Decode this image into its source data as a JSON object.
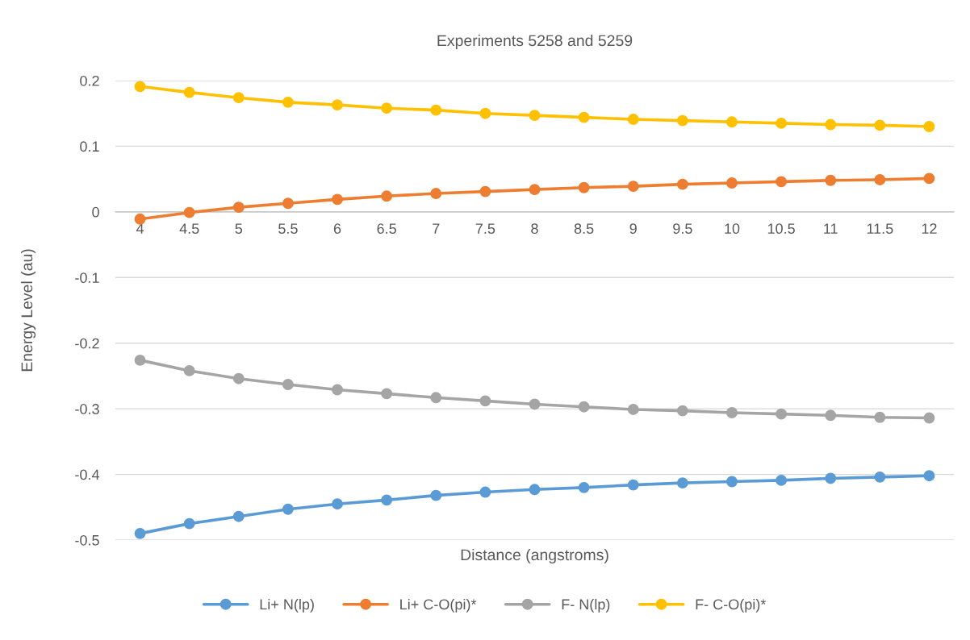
{
  "chart_data": {
    "type": "line",
    "title": "Experiments 5258 and 5259",
    "xlabel": "Distance (angstroms)",
    "ylabel": "Energy Level (au)",
    "categories": [
      "4",
      "4.5",
      "5",
      "5.5",
      "6",
      "6.5",
      "7",
      "7.5",
      "8",
      "8.5",
      "9",
      "9.5",
      "10",
      "10.5",
      "11",
      "11.5",
      "12"
    ],
    "series": [
      {
        "name": "Li+ N(lp)",
        "color": "#5b9bd5",
        "values": [
          -0.49,
          -0.475,
          -0.464,
          -0.453,
          -0.445,
          -0.439,
          -0.432,
          -0.427,
          -0.423,
          -0.42,
          -0.416,
          -0.413,
          -0.411,
          -0.409,
          -0.406,
          -0.404,
          -0.402
        ]
      },
      {
        "name": "Li+ C-O(pi)*",
        "color": "#ed7d31",
        "values": [
          -0.011,
          -0.001,
          0.007,
          0.013,
          0.019,
          0.024,
          0.028,
          0.031,
          0.034,
          0.037,
          0.039,
          0.042,
          0.044,
          0.046,
          0.048,
          0.049,
          0.051
        ]
      },
      {
        "name": "F- N(lp)",
        "color": "#a5a5a5",
        "values": [
          -0.226,
          -0.242,
          -0.254,
          -0.263,
          -0.271,
          -0.277,
          -0.283,
          -0.288,
          -0.293,
          -0.297,
          -0.301,
          -0.303,
          -0.306,
          -0.308,
          -0.31,
          -0.313,
          -0.314
        ]
      },
      {
        "name": "F- C-O(pi)*",
        "color": "#ffc000",
        "values": [
          0.191,
          0.182,
          0.174,
          0.167,
          0.163,
          0.158,
          0.155,
          0.15,
          0.147,
          0.144,
          0.141,
          0.139,
          0.137,
          0.135,
          0.133,
          0.132,
          0.13
        ]
      }
    ],
    "ylim": [
      -0.5,
      0.2
    ],
    "yticks": [
      {
        "value": -0.5,
        "label": "-0.5"
      },
      {
        "value": -0.4,
        "label": "-0.4"
      },
      {
        "value": -0.3,
        "label": "-0.3"
      },
      {
        "value": -0.2,
        "label": "-0.2"
      },
      {
        "value": -0.1,
        "label": "-0.1"
      },
      0,
      0.1,
      0.2
    ],
    "grid": "y",
    "legend": "bottom",
    "marker": "circle",
    "line_style": "solid"
  }
}
